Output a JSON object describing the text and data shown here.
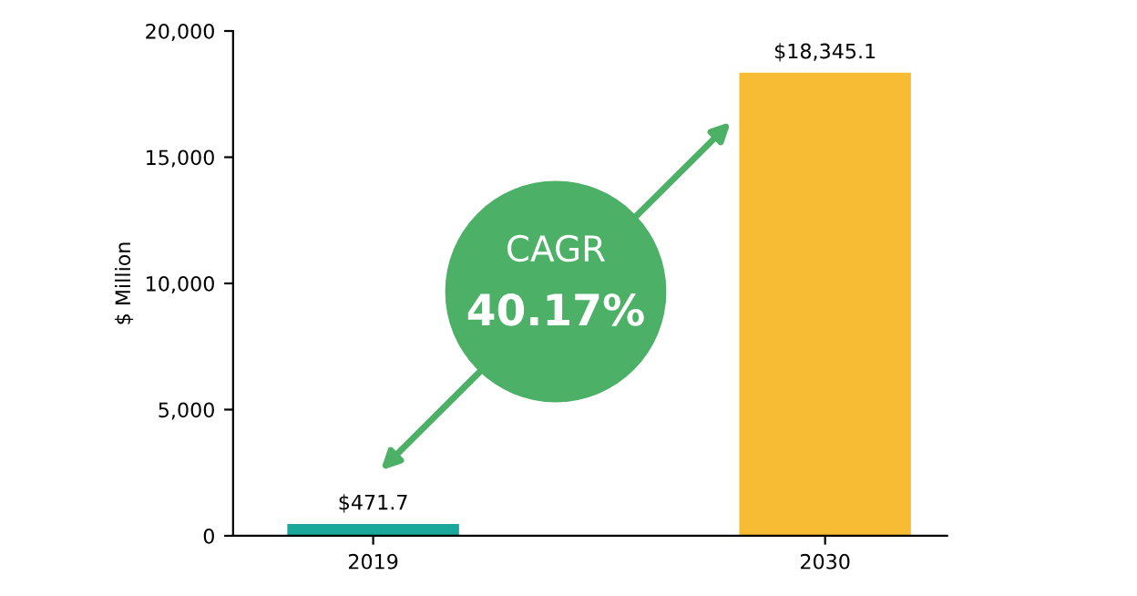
{
  "chart_data": {
    "type": "bar",
    "categories": [
      "2019",
      "2030"
    ],
    "values": [
      471.7,
      18345.1
    ],
    "colors": [
      "#1aa89a",
      "#f8bb34"
    ],
    "value_labels": [
      "$471.7",
      "$18,345.1"
    ],
    "ylabel": "$ Million",
    "ylim": [
      0,
      20000
    ],
    "yticks": [
      {
        "value": 0,
        "label": "0"
      },
      {
        "value": 5000,
        "label": "5,000"
      },
      {
        "value": 10000,
        "label": "10,000"
      },
      {
        "value": 15000,
        "label": "15,000"
      },
      {
        "value": 20000,
        "label": "20,000"
      }
    ],
    "annotations": [
      "CAGR",
      "40.17%"
    ],
    "grid": false,
    "legend": false
  }
}
